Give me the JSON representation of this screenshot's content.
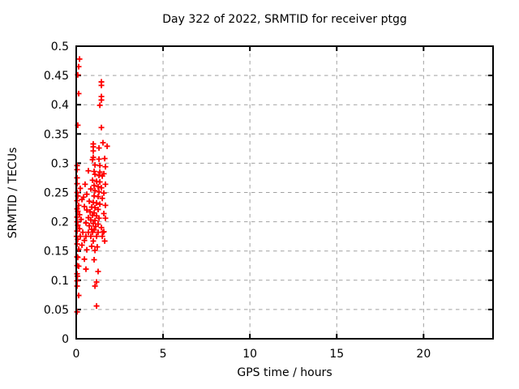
{
  "colors": {
    "marker": "#ff0000",
    "grid": "#a0a0a0",
    "axis": "#000000",
    "background": "#ffffff",
    "text": "#000000"
  },
  "chart_data": {
    "type": "scatter",
    "title": "Day 322 of 2022, SRMTID for receiver ptgg",
    "xlabel": "GPS time / hours",
    "ylabel": "SRMTID / TECUs",
    "xlim": [
      0,
      24
    ],
    "ylim": [
      0,
      0.5
    ],
    "xticks": [
      0,
      5,
      10,
      15,
      20
    ],
    "xtick_labels": [
      "0",
      "5",
      "10",
      "15",
      "20"
    ],
    "yticks": [
      0,
      0.05,
      0.1,
      0.15,
      0.2,
      0.25,
      0.3,
      0.35,
      0.4,
      0.45,
      0.5
    ],
    "ytick_labels": [
      "0",
      "0.05",
      "0.1",
      "0.15",
      "0.2",
      "0.25",
      "0.3",
      "0.35",
      "0.4",
      "0.45",
      "0.5"
    ],
    "grid": true,
    "legend": "none",
    "marker": "plus",
    "series": [
      {
        "name": "SRMTID",
        "color": "#ff0000",
        "points": [
          [
            0.19,
            0.478
          ],
          [
            0.14,
            0.465
          ],
          [
            0.09,
            0.451
          ],
          [
            1.45,
            0.439
          ],
          [
            1.45,
            0.433
          ],
          [
            0.14,
            0.419
          ],
          [
            1.45,
            0.414
          ],
          [
            1.45,
            0.408
          ],
          [
            1.36,
            0.399
          ],
          [
            0.09,
            0.365
          ],
          [
            1.45,
            0.361
          ],
          [
            1.54,
            0.335
          ],
          [
            0.98,
            0.333
          ],
          [
            1.78,
            0.329
          ],
          [
            0.98,
            0.328
          ],
          [
            1.31,
            0.326
          ],
          [
            0.98,
            0.321
          ],
          [
            0.98,
            0.31
          ],
          [
            1.64,
            0.308
          ],
          [
            1.31,
            0.307
          ],
          [
            0.94,
            0.306
          ],
          [
            0.05,
            0.296
          ],
          [
            1.08,
            0.297
          ],
          [
            1.36,
            0.296
          ],
          [
            1.68,
            0.294
          ],
          [
            0.05,
            0.289
          ],
          [
            0.7,
            0.287
          ],
          [
            1.03,
            0.286
          ],
          [
            1.36,
            0.285
          ],
          [
            1.59,
            0.282
          ],
          [
            1.08,
            0.281
          ],
          [
            1.31,
            0.279
          ],
          [
            1.5,
            0.278
          ],
          [
            0.05,
            0.275
          ],
          [
            0.94,
            0.271
          ],
          [
            1.17,
            0.269
          ],
          [
            1.36,
            0.268
          ],
          [
            0.05,
            0.265
          ],
          [
            0.51,
            0.264
          ],
          [
            1.68,
            0.264
          ],
          [
            1.03,
            0.262
          ],
          [
            1.26,
            0.26
          ],
          [
            1.45,
            0.258
          ],
          [
            0.23,
            0.257
          ],
          [
            0.84,
            0.256
          ],
          [
            1.08,
            0.253
          ],
          [
            1.31,
            0.251
          ],
          [
            0.05,
            0.25
          ],
          [
            1.59,
            0.249
          ],
          [
            0.61,
            0.247
          ],
          [
            1.03,
            0.244
          ],
          [
            0.09,
            0.244
          ],
          [
            1.26,
            0.243
          ],
          [
            0.42,
            0.242
          ],
          [
            1.5,
            0.24
          ],
          [
            0.33,
            0.238
          ],
          [
            0.05,
            0.236
          ],
          [
            0.75,
            0.235
          ],
          [
            0.98,
            0.233
          ],
          [
            1.17,
            0.232
          ],
          [
            1.36,
            0.23
          ],
          [
            0.14,
            0.228
          ],
          [
            1.68,
            0.228
          ],
          [
            0.47,
            0.226
          ],
          [
            0.89,
            0.225
          ],
          [
            1.08,
            0.224
          ],
          [
            0.05,
            0.222
          ],
          [
            1.26,
            0.221
          ],
          [
            0.61,
            0.22
          ],
          [
            0.09,
            0.218
          ],
          [
            0.8,
            0.217
          ],
          [
            1.03,
            0.215
          ],
          [
            1.59,
            0.214
          ],
          [
            0.19,
            0.212
          ],
          [
            0.94,
            0.211
          ],
          [
            1.17,
            0.21
          ],
          [
            0.05,
            0.208
          ],
          [
            0.7,
            0.207
          ],
          [
            1.31,
            0.206
          ],
          [
            1.68,
            0.206
          ],
          [
            0.28,
            0.204
          ],
          [
            0.84,
            0.203
          ],
          [
            1.08,
            0.202
          ],
          [
            0.05,
            0.2
          ],
          [
            0.56,
            0.198
          ],
          [
            0.98,
            0.197
          ],
          [
            1.26,
            0.196
          ],
          [
            0.09,
            0.194
          ],
          [
            0.75,
            0.193
          ],
          [
            1.12,
            0.192
          ],
          [
            1.45,
            0.19
          ],
          [
            0.19,
            0.188
          ],
          [
            0.89,
            0.187
          ],
          [
            1.03,
            0.186
          ],
          [
            0.05,
            0.184
          ],
          [
            1.59,
            0.183
          ],
          [
            0.38,
            0.182
          ],
          [
            0.7,
            0.182
          ],
          [
            0.94,
            0.182
          ],
          [
            1.26,
            0.182
          ],
          [
            1.54,
            0.182
          ],
          [
            0.02,
            0.175
          ],
          [
            0.23,
            0.175
          ],
          [
            0.56,
            0.175
          ],
          [
            0.84,
            0.175
          ],
          [
            1.17,
            0.175
          ],
          [
            1.5,
            0.175
          ],
          [
            0.09,
            0.17
          ],
          [
            0.47,
            0.168
          ],
          [
            0.98,
            0.167
          ],
          [
            1.64,
            0.167
          ],
          [
            0.05,
            0.162
          ],
          [
            0.33,
            0.16
          ],
          [
            0.89,
            0.158
          ],
          [
            1.21,
            0.157
          ],
          [
            0.14,
            0.153
          ],
          [
            0.61,
            0.152
          ],
          [
            1.08,
            0.151
          ],
          [
            0.05,
            0.14
          ],
          [
            0.09,
            0.139
          ],
          [
            0.47,
            0.136
          ],
          [
            1.03,
            0.135
          ],
          [
            0.05,
            0.125
          ],
          [
            0.14,
            0.124
          ],
          [
            0.56,
            0.119
          ],
          [
            1.26,
            0.115
          ],
          [
            0.05,
            0.111
          ],
          [
            0.07,
            0.107
          ],
          [
            0.05,
            0.099
          ],
          [
            1.17,
            0.097
          ],
          [
            0.05,
            0.09
          ],
          [
            1.08,
            0.09
          ],
          [
            0.14,
            0.074
          ],
          [
            1.17,
            0.056
          ],
          [
            0.05,
            0.046
          ]
        ]
      }
    ]
  }
}
